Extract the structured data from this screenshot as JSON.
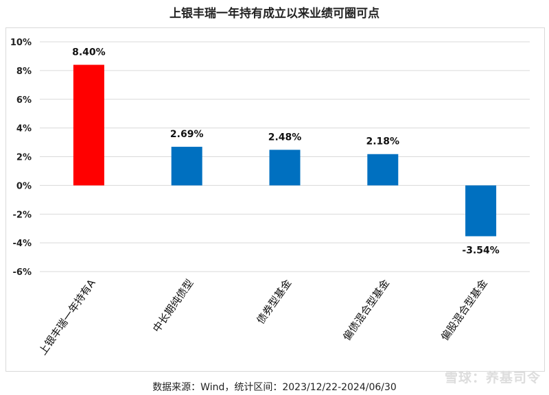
{
  "chart_data": {
    "type": "bar",
    "title": "上银丰瑞一年持有成立以来业绩可圈可点",
    "categories": [
      "上银丰瑞一年持有A",
      "中长期纯债型",
      "债券型基金",
      "偏债混合型基金",
      "偏股混合型基金"
    ],
    "values": [
      8.4,
      2.69,
      2.48,
      2.18,
      -3.54
    ],
    "data_labels": [
      "8.40%",
      "2.69%",
      "2.48%",
      "2.18%",
      "-3.54%"
    ],
    "colors": [
      "#ff0000",
      "#0070c0",
      "#0070c0",
      "#0070c0",
      "#0070c0"
    ],
    "yticks": [
      10,
      8,
      6,
      4,
      2,
      0,
      -2,
      -4,
      -6
    ],
    "ytick_labels": [
      "10%",
      "8%",
      "6%",
      "4%",
      "2%",
      "0%",
      "-2%",
      "-4%",
      "-6%"
    ],
    "ylim": [
      -6,
      10
    ],
    "grid": true,
    "xlabel": "",
    "ylabel": ""
  },
  "footer": {
    "source": "数据来源：Wind，统计区间：2023/12/22-2024/06/30",
    "watermark": "雪球：养基司令"
  }
}
